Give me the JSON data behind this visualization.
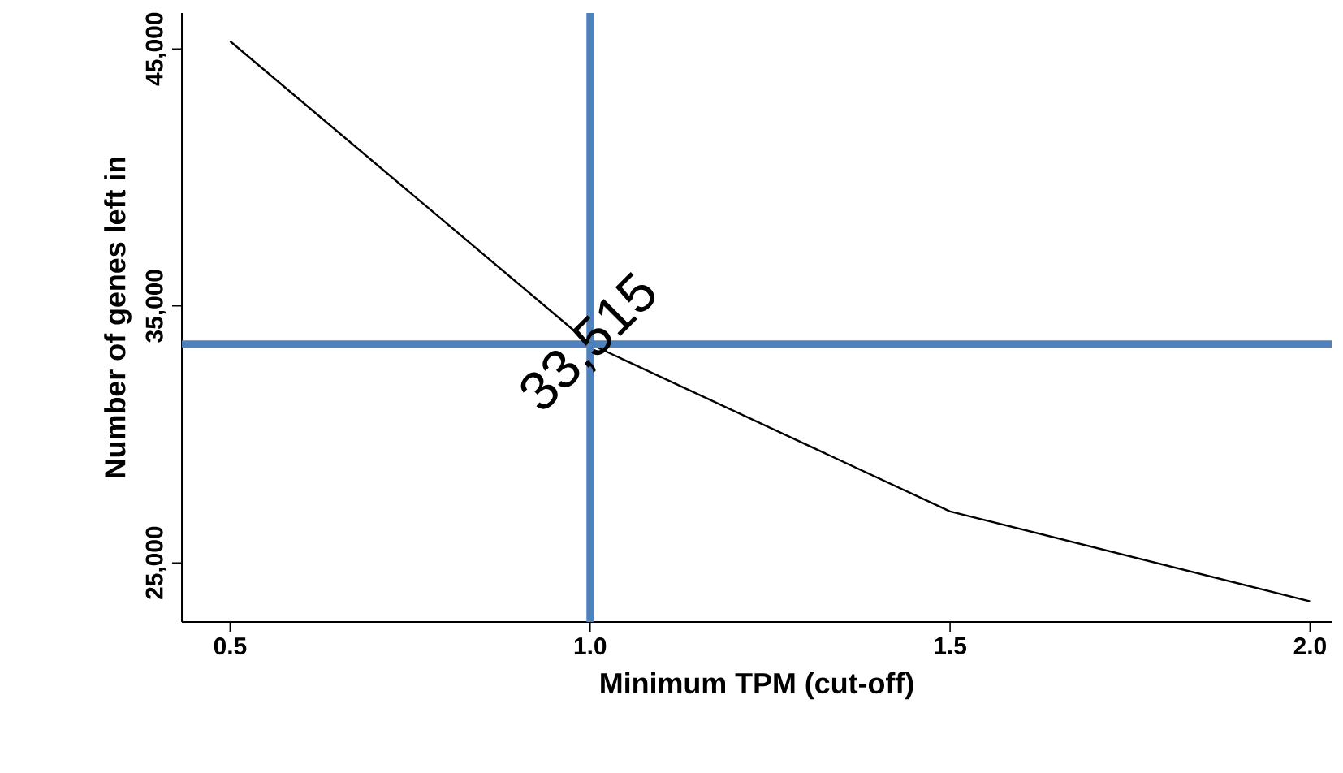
{
  "chart_data": {
    "type": "line",
    "xlabel": "Minimum TPM (cut-off)",
    "ylabel": "Number of genes left in",
    "x": [
      0.5,
      1.0,
      1.5,
      2.0
    ],
    "series": [
      {
        "color": "#000000",
        "values": [
          45300,
          33515,
          27000,
          23500
        ]
      }
    ],
    "xlim": [
      0.433,
      2.03
    ],
    "ylim": [
      22700,
      46400
    ],
    "xticks": [
      {
        "value": 0.5,
        "label": "0.5"
      },
      {
        "value": 1.0,
        "label": "1.0"
      },
      {
        "value": 1.5,
        "label": "1.5"
      },
      {
        "value": 2.0,
        "label": "2.0"
      }
    ],
    "yticks": [
      {
        "value": 25000,
        "label": "25,000"
      },
      {
        "value": 35000,
        "label": "35,000"
      },
      {
        "value": 45000,
        "label": "45,000"
      }
    ],
    "ref_lines": [
      {
        "axis": "x",
        "value": 1.0,
        "color": "#4f81bd"
      },
      {
        "axis": "y",
        "value": 33515,
        "color": "#4f81bd"
      }
    ],
    "annotations": [
      {
        "text": "33,515",
        "x": 1.0,
        "y": 33515
      }
    ],
    "grid": false,
    "legend": false,
    "marker": "none",
    "line_style": "solid"
  }
}
